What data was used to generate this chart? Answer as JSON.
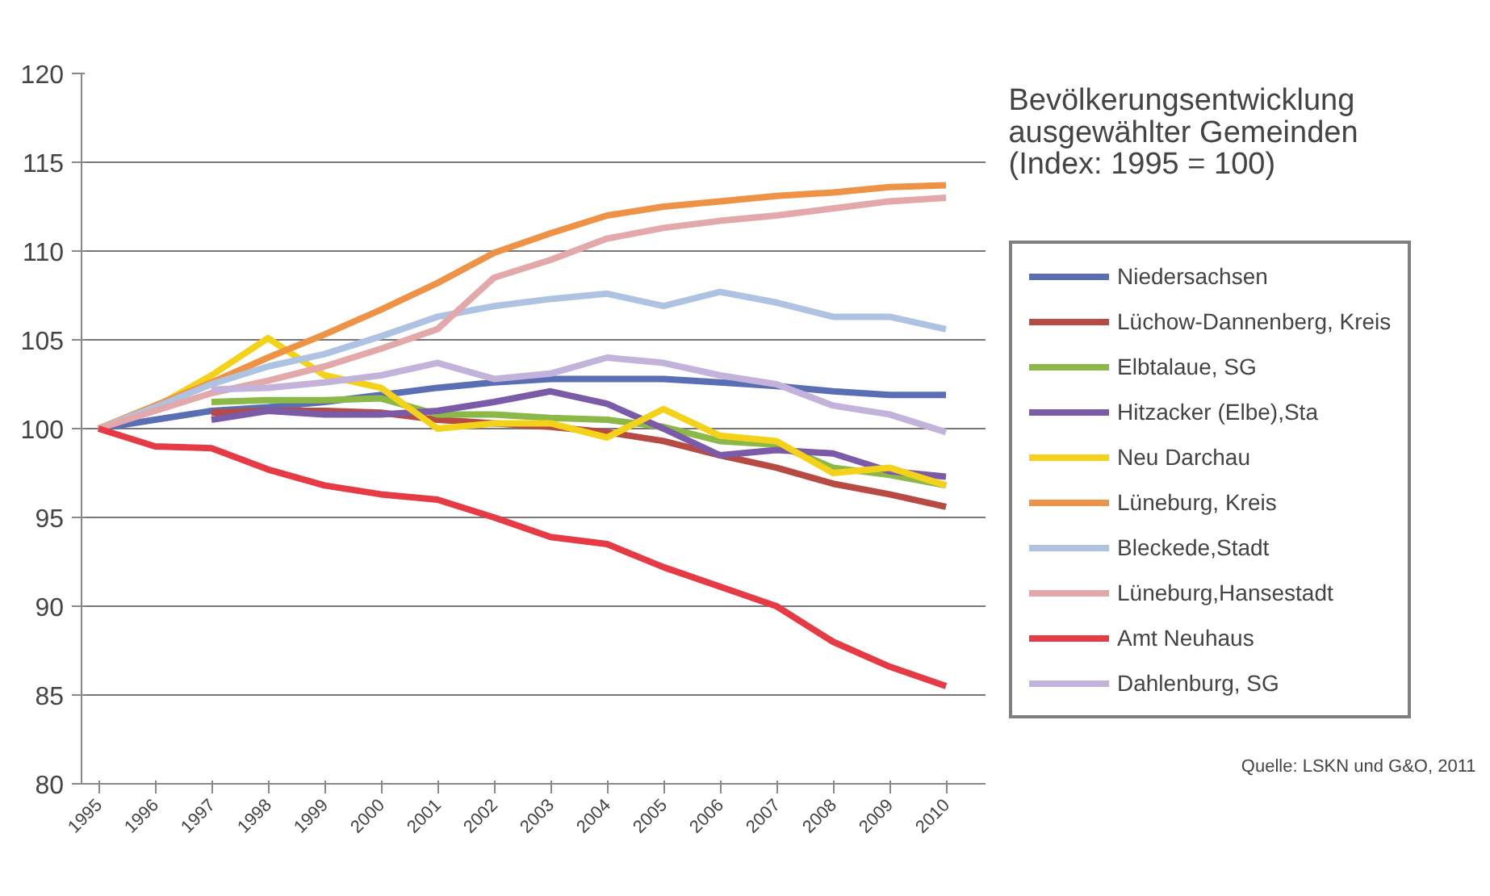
{
  "chart_data": {
    "type": "line",
    "title": "Bevölkerungsentwicklung\nausgewählter Gemeinden\n(Index: 1995 = 100)",
    "x": [
      1995,
      1996,
      1997,
      1998,
      1999,
      2000,
      2001,
      2002,
      2003,
      2004,
      2005,
      2006,
      2007,
      2008,
      2009,
      2010
    ],
    "xlim": [
      1994.7,
      2010.7
    ],
    "xticks": [
      1995,
      1996,
      1997,
      1998,
      1999,
      2000,
      2001,
      2002,
      2003,
      2004,
      2005,
      2006,
      2007,
      2008,
      2009,
      2010
    ],
    "ylim": [
      80,
      120
    ],
    "yticks": [
      80,
      85,
      90,
      95,
      100,
      105,
      110,
      115,
      120
    ],
    "grid": "y",
    "legend": "right",
    "marker": "none",
    "line_style": "solid",
    "annotations": [
      "Quelle: LSKN und G&O, 2011"
    ],
    "series": [
      {
        "name": "Niedersachsen",
        "color": "#5a6eb4",
        "values": [
          100,
          100.5,
          101,
          101.2,
          101.5,
          101.9,
          102.3,
          102.6,
          102.8,
          102.8,
          102.8,
          102.6,
          102.4,
          102.1,
          101.9,
          101.9
        ]
      },
      {
        "name": "Lüchow-Dannenberg, Kreis",
        "color": "#b84a44",
        "values": [
          null,
          null,
          100.9,
          101,
          101,
          100.9,
          100.5,
          100.3,
          100.1,
          99.8,
          99.3,
          98.5,
          97.8,
          96.9,
          96.3,
          95.6
        ]
      },
      {
        "name": "Elbtalaue, SG",
        "color": "#8cb848",
        "values": [
          null,
          null,
          101.5,
          101.6,
          101.6,
          101.7,
          100.8,
          100.8,
          100.6,
          100.5,
          100.1,
          99.3,
          99.1,
          97.8,
          97.4,
          96.8
        ]
      },
      {
        "name": "Hitzacker (Elbe),Sta",
        "color": "#7b5aa8",
        "values": [
          null,
          null,
          100.5,
          101,
          100.8,
          100.8,
          101,
          101.5,
          102.1,
          101.4,
          100,
          98.5,
          98.8,
          98.6,
          97.6,
          97.3
        ]
      },
      {
        "name": "Neu Darchau",
        "color": "#f5d21a",
        "values": [
          100,
          101.2,
          103,
          105.1,
          103,
          102.3,
          100,
          100.3,
          100.3,
          99.5,
          101.1,
          99.6,
          99.3,
          97.5,
          97.8,
          96.8
        ]
      },
      {
        "name": "Lüneburg, Kreis",
        "color": "#ee9345",
        "values": [
          100,
          101.3,
          102.6,
          104,
          105.3,
          106.7,
          108.2,
          109.9,
          111,
          112,
          112.5,
          112.8,
          113.1,
          113.3,
          113.6,
          113.7
        ]
      },
      {
        "name": "Bleckede,Stadt",
        "color": "#aec3e2",
        "values": [
          100,
          101.2,
          102.5,
          103.5,
          104.2,
          105.2,
          106.3,
          106.9,
          107.3,
          107.6,
          106.9,
          107.7,
          107.1,
          106.3,
          106.3,
          105.6
        ]
      },
      {
        "name": "Lüneburg,Hansestadt",
        "color": "#e2a8aa",
        "values": [
          100,
          101,
          102,
          102.7,
          103.5,
          104.5,
          105.6,
          108.5,
          109.5,
          110.7,
          111.3,
          111.7,
          112,
          112.4,
          112.8,
          113
        ]
      },
      {
        "name": "Amt Neuhaus",
        "color": "#e63a44",
        "values": [
          100,
          99,
          98.9,
          97.7,
          96.8,
          96.3,
          96,
          95,
          93.9,
          93.5,
          92.2,
          91.1,
          90,
          88,
          86.6,
          85.5
        ]
      },
      {
        "name": "Dahlenburg, SG",
        "color": "#c3b2da",
        "values": [
          null,
          null,
          102.2,
          102.3,
          102.6,
          103,
          103.7,
          102.8,
          103.1,
          104,
          103.7,
          103,
          102.5,
          101.3,
          100.8,
          99.8
        ]
      }
    ]
  }
}
